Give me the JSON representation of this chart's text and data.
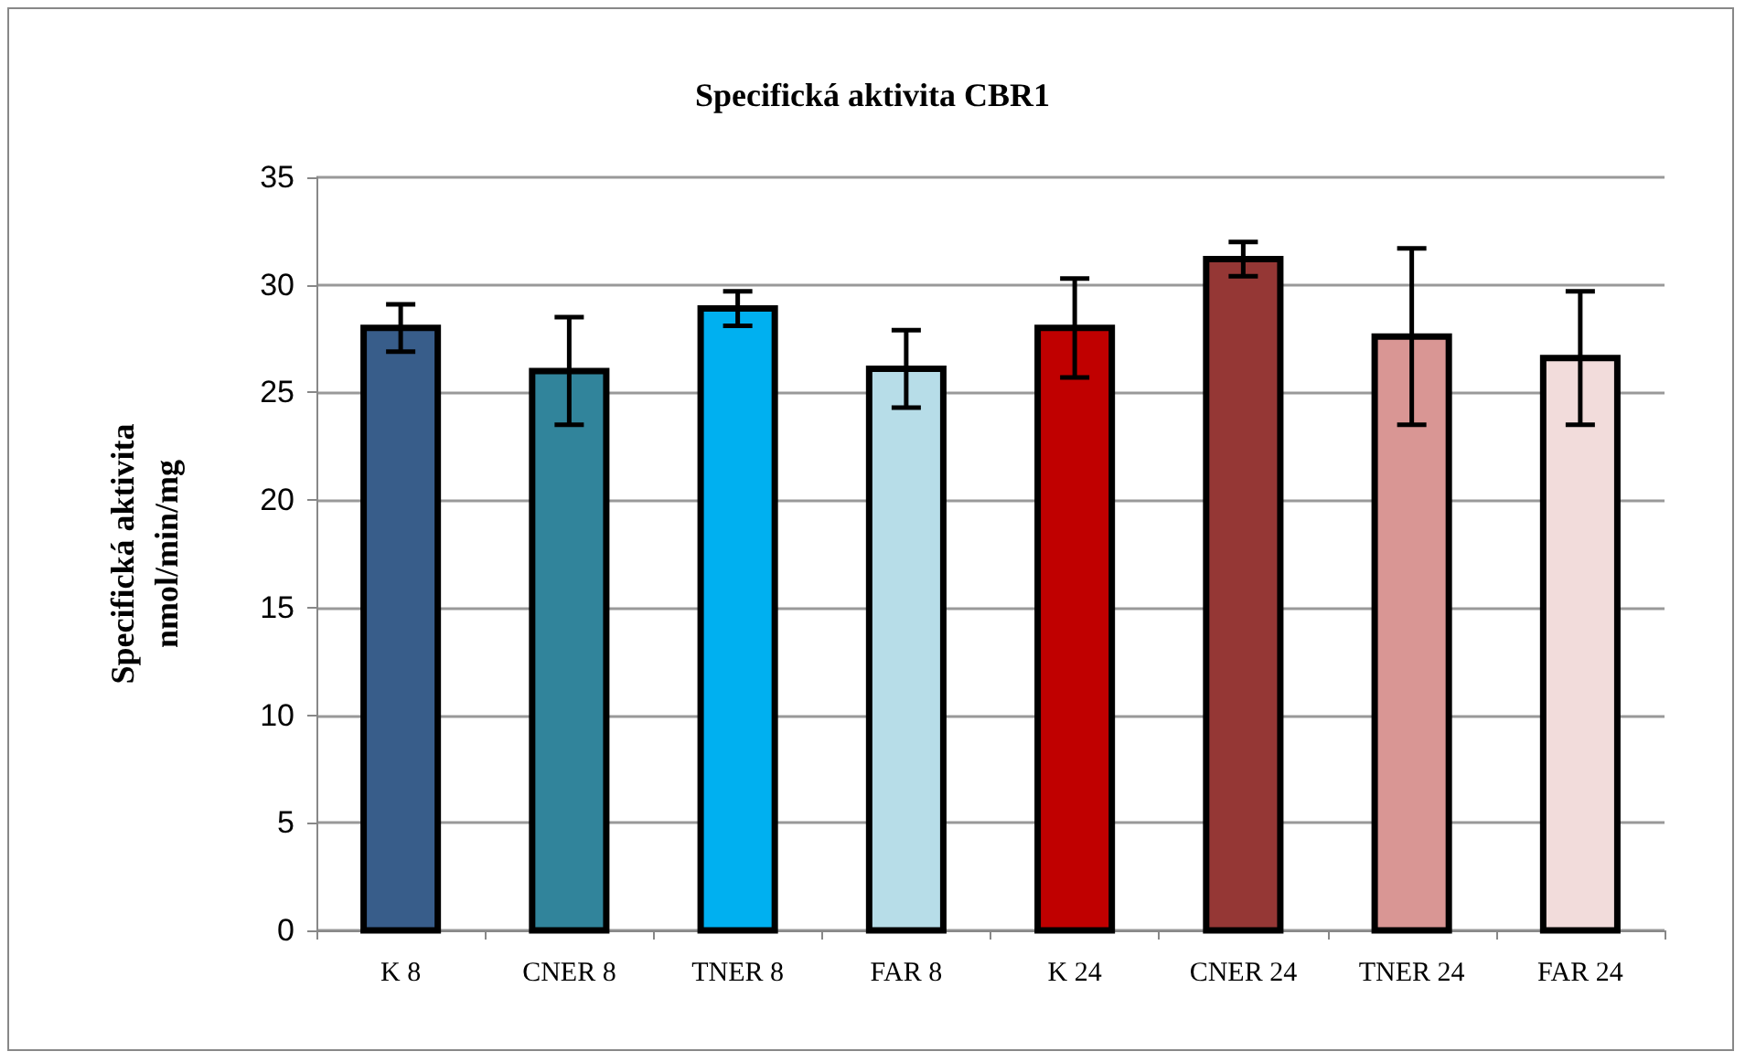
{
  "chart_data": {
    "type": "bar",
    "title": "Specifická aktivita CBR1",
    "ylabel": "Specifická aktivita\nnmol/min/mg",
    "categories": [
      "K 8",
      "CNER 8",
      "TNER 8",
      "FAR 8",
      "K 24",
      "CNER 24",
      "TNER 24",
      "FAR 24"
    ],
    "values": [
      28.0,
      26.0,
      28.9,
      26.1,
      28.0,
      31.2,
      27.6,
      26.6
    ],
    "errors": [
      1.1,
      2.5,
      0.8,
      1.8,
      2.3,
      0.8,
      4.1,
      3.1
    ],
    "colors": [
      "#385d8a",
      "#31849b",
      "#00b0f0",
      "#b7dde8",
      "#c00000",
      "#953735",
      "#d99694",
      "#f2dcdb"
    ],
    "ylim": [
      0,
      35
    ],
    "yticks": [
      0,
      5,
      10,
      15,
      20,
      25,
      30,
      35
    ],
    "grid": "y"
  }
}
